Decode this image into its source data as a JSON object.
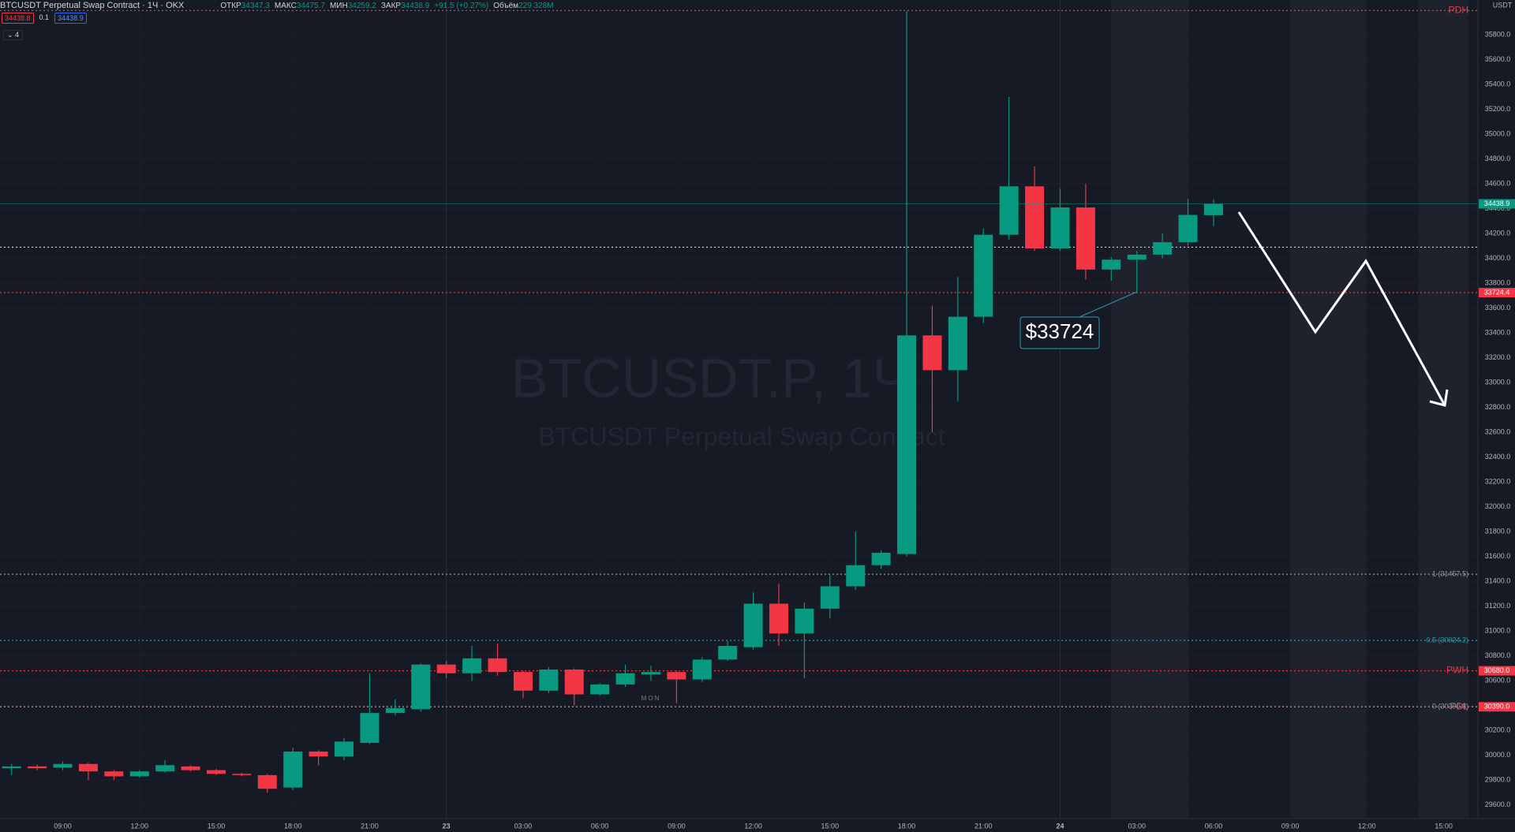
{
  "header": {
    "symbol": "BTCUSDT Perpetual Swap Contract · 1Ч · OKX",
    "open_label": "ОТКР",
    "high_label": "МАКС",
    "low_label": "МИН",
    "close_label": "ЗАКР",
    "change": "+91.5 (+0.27%)",
    "volume_label": "Объём",
    "volume": "229.328M",
    "sell": "34438.8",
    "spread": "0.1",
    "buy": "34438.9",
    "indicators": "4",
    "currency": "USDT"
  },
  "watermark": {
    "symbol": "BTCUSDT.P, 1Ч",
    "description": "BTCUSDT Perpetual Swap Contract"
  },
  "chart_data": {
    "type": "candlestick",
    "categories": [
      null,
      null,
      "09:00",
      null,
      null,
      "12:00",
      null,
      null,
      "15:00",
      null,
      null,
      "18:00",
      null,
      null,
      "21:00",
      null,
      null,
      "23",
      null,
      null,
      "03:00",
      null,
      null,
      "06:00",
      null,
      null,
      "09:00",
      null,
      null,
      "12:00",
      null,
      null,
      "15:00",
      null,
      null,
      "18:00",
      null,
      null,
      "21:00",
      null,
      null,
      "24",
      null,
      null,
      "03:00",
      null,
      null,
      "06:00",
      null,
      null,
      "09:00",
      null,
      null,
      "12:00",
      null,
      null,
      "15:00"
    ],
    "open": [
      29895,
      29910,
      29900,
      29930,
      29870,
      29830,
      29870,
      29910,
      29880,
      29850,
      29840,
      29740,
      30030,
      29990,
      30100,
      30340,
      30370,
      30730,
      30660,
      30780,
      30670,
      30520,
      30690,
      30490,
      30570,
      30650,
      30670,
      30610,
      30770,
      30870,
      31220,
      30980,
      31180,
      31360,
      31530,
      31620,
      33380,
      33100,
      33530,
      34190,
      34580,
      34080,
      34410,
      33910,
      33990,
      34030,
      34130,
      34347.3,
      null,
      null,
      null,
      null,
      null,
      null,
      null,
      null,
      null
    ],
    "high": [
      29930,
      29925,
      29950,
      29940,
      29880,
      29880,
      29960,
      29920,
      29890,
      29860,
      29850,
      30060,
      30040,
      30140,
      30660,
      30450,
      30740,
      30760,
      30880,
      30900,
      30680,
      30710,
      30700,
      30580,
      30730,
      30720,
      30680,
      30790,
      30920,
      31310,
      31380,
      31230,
      31450,
      31800,
      31650,
      35990,
      33620,
      33850,
      34240,
      35300,
      34740,
      34560,
      34600,
      34010,
      34060,
      34200,
      34480,
      34475.7,
      null,
      null,
      null,
      null,
      null,
      null,
      null,
      null,
      null
    ],
    "low": [
      29840,
      29880,
      29880,
      29800,
      29800,
      29820,
      29860,
      29870,
      29840,
      29830,
      29700,
      29720,
      29920,
      29960,
      30090,
      30320,
      30350,
      30620,
      30600,
      30640,
      30460,
      30500,
      30400,
      30480,
      30550,
      30600,
      30420,
      30590,
      30760,
      30850,
      30880,
      30620,
      31100,
      31330,
      31500,
      31600,
      32600,
      32850,
      33480,
      34150,
      34060,
      34060,
      33830,
      33820,
      33724,
      34000,
      34100,
      34259.2,
      null,
      null,
      null,
      null,
      null,
      null,
      null,
      null,
      null
    ],
    "close": [
      29910,
      29895,
      29930,
      29870,
      29830,
      29870,
      29920,
      29880,
      29850,
      29840,
      29730,
      30030,
      29990,
      30110,
      30340,
      30380,
      30730,
      30660,
      30780,
      30670,
      30520,
      30690,
      30490,
      30570,
      30660,
      30670,
      30610,
      30770,
      30880,
      31220,
      30980,
      31180,
      31360,
      31530,
      31630,
      33380,
      33100,
      33530,
      34190,
      34580,
      34080,
      34410,
      33910,
      33990,
      34030,
      34130,
      34350,
      34438.9,
      null,
      null,
      null,
      null,
      null,
      null,
      null,
      null,
      null
    ],
    "up_color": "#089981",
    "down_color": "#f23645",
    "ylim": [
      29490,
      36080
    ],
    "yticks": [
      {
        "value": 29600,
        "label": "29600.0"
      },
      {
        "value": 29800,
        "label": "29800.0"
      },
      {
        "value": 30000,
        "label": "30000.0"
      },
      {
        "value": 30200,
        "label": "30200.0"
      },
      {
        "value": 30400,
        "label": "30400.0"
      },
      {
        "value": 30600,
        "label": "30600.0"
      },
      {
        "value": 30800,
        "label": "30800.0"
      },
      {
        "value": 31000,
        "label": "31000.0"
      },
      {
        "value": 31200,
        "label": "31200.0"
      },
      {
        "value": 31400,
        "label": "31400.0"
      },
      {
        "value": 31600,
        "label": "31600.0"
      },
      {
        "value": 31800,
        "label": "31800.0"
      },
      {
        "value": 32000,
        "label": "32000.0"
      },
      {
        "value": 32200,
        "label": "32200.0"
      },
      {
        "value": 32400,
        "label": "32400.0"
      },
      {
        "value": 32600,
        "label": "32600.0"
      },
      {
        "value": 32800,
        "label": "32800.0"
      },
      {
        "value": 33000,
        "label": "33000.0"
      },
      {
        "value": 33200,
        "label": "33200.0"
      },
      {
        "value": 33400,
        "label": "33400.0"
      },
      {
        "value": 33600,
        "label": "33600.0"
      },
      {
        "value": 33800,
        "label": "33800.0"
      },
      {
        "value": 34000,
        "label": "34000.0"
      },
      {
        "value": 34200,
        "label": "34200.0"
      },
      {
        "value": 34400,
        "label": "34400.0"
      },
      {
        "value": 34600,
        "label": "34600.0"
      },
      {
        "value": 34800,
        "label": "34800.0"
      },
      {
        "value": 35000,
        "label": "35000.0"
      },
      {
        "value": 35200,
        "label": "35200.0"
      },
      {
        "value": 35400,
        "label": "35400.0"
      },
      {
        "value": 35600,
        "label": "35600.0"
      },
      {
        "value": 35800,
        "label": "35800.0"
      }
    ],
    "grid": true,
    "levels": [
      {
        "name": "PDH",
        "value": 35995,
        "color": "#f23645"
      },
      {
        "name": "PWH",
        "value": 30680,
        "label": "30680.0",
        "color": "#f23645",
        "tag": true
      },
      {
        "name": "PDL",
        "value": 30390,
        "label": "30390.0",
        "color": "#f23645",
        "tag": true
      },
      {
        "name": "1 (31457.5)",
        "value": 31457.5,
        "color": "#9598a1"
      },
      {
        "name": "0.5 (30924.2)",
        "value": 30924.2,
        "color": "#2a9bb0"
      },
      {
        "name": "0 (30390.8)",
        "value": 30390.8,
        "color": "#9598a1"
      },
      {
        "value": 33724.4,
        "color": "#f23645",
        "tag": true
      },
      {
        "value": 34090,
        "color": "#d1d4dc"
      }
    ],
    "annotation": "$33724",
    "session_label": "MON"
  }
}
